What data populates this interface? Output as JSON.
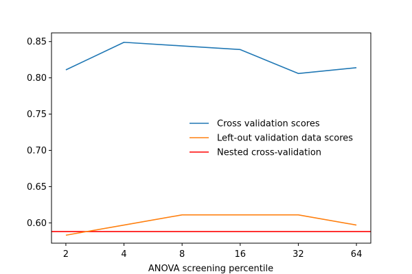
{
  "chart_data": {
    "type": "line",
    "title": "",
    "xlabel": "ANOVA screening percentile",
    "ylabel": "",
    "categories": [
      "2",
      "4",
      "8",
      "16",
      "32",
      "64"
    ],
    "x_scale": "log2",
    "ylim": [
      0.572,
      0.862
    ],
    "yticks": [
      "0.60",
      "0.65",
      "0.70",
      "0.75",
      "0.80",
      "0.85"
    ],
    "grid": false,
    "legend_position": "center-right",
    "series": [
      {
        "name": "Cross validation scores",
        "color": "#1f77b4",
        "values": [
          0.811,
          0.849,
          0.844,
          0.839,
          0.806,
          0.814
        ]
      },
      {
        "name": "Left-out validation data scores",
        "color": "#ff7f0e",
        "values": [
          0.583,
          0.597,
          0.611,
          0.611,
          0.611,
          0.597
        ]
      }
    ],
    "hlines": [
      {
        "name": "Nested cross-validation",
        "color": "#ff0000",
        "value": 0.588
      }
    ]
  }
}
